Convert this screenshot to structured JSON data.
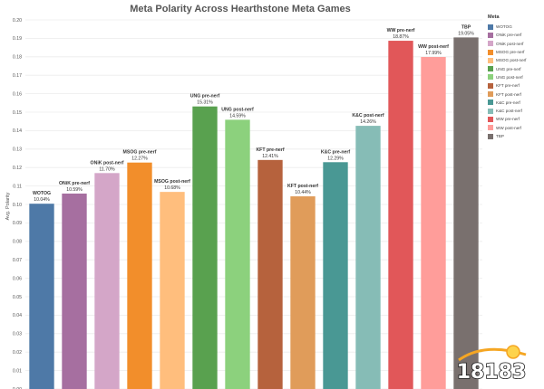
{
  "chart_data": {
    "type": "bar",
    "title": "Meta Polarity Across Hearthstone Meta Games",
    "ylabel": "Avg. Polarity",
    "xlabel": "",
    "ylim": [
      0,
      0.2
    ],
    "yticks": [
      "0.00",
      "0.01",
      "0.02",
      "0.03",
      "0.04",
      "0.05",
      "0.06",
      "0.07",
      "0.08",
      "0.09",
      "0.10",
      "0.11",
      "0.12",
      "0.13",
      "0.14",
      "0.15",
      "0.16",
      "0.17",
      "0.18",
      "0.19",
      "0.20"
    ],
    "grid": true,
    "legend_title": "Meta",
    "legend_placement": "right",
    "bars": [
      {
        "label": "WOTOG",
        "value": 0.1004,
        "value_label": "10.04%",
        "color": "#4e79a7"
      },
      {
        "label": "ONiK pre-nerf",
        "value": 0.1059,
        "value_label": "10.59%",
        "color": "#a66fa0"
      },
      {
        "label": "ONiK post-nerf",
        "value": 0.117,
        "value_label": "11.70%",
        "color": "#d4a6c8"
      },
      {
        "label": "MSOG pre-nerf",
        "value": 0.1227,
        "value_label": "12.27%",
        "color": "#f28e2b"
      },
      {
        "label": "MSOG post-nerf",
        "value": 0.1068,
        "value_label": "10.68%",
        "color": "#ffbe7d"
      },
      {
        "label": "UNG pre-nerf",
        "value": 0.1531,
        "value_label": "15.31%",
        "color": "#59a14f"
      },
      {
        "label": "UNG post-nerf",
        "value": 0.1459,
        "value_label": "14.59%",
        "color": "#8cd17d"
      },
      {
        "label": "KFT pre-nerf",
        "value": 0.1241,
        "value_label": "12.41%",
        "color": "#b6623d"
      },
      {
        "label": "KFT post-nerf",
        "value": 0.1044,
        "value_label": "10.44%",
        "color": "#e09c5a"
      },
      {
        "label": "K&C pre-nerf",
        "value": 0.1229,
        "value_label": "12.29%",
        "color": "#499894"
      },
      {
        "label": "K&C post-nerf",
        "value": 0.1426,
        "value_label": "14.26%",
        "color": "#86bcb6"
      },
      {
        "label": "WW pre-nerf",
        "value": 0.1887,
        "value_label": "18.87%",
        "color": "#e15759"
      },
      {
        "label": "WW post-nerf",
        "value": 0.1799,
        "value_label": "17.99%",
        "color": "#ff9d9a"
      },
      {
        "label": "TBP",
        "value": 0.1905,
        "value_label": "19.05%",
        "color": "#79706e"
      }
    ]
  },
  "watermark": {
    "text": "18183"
  }
}
